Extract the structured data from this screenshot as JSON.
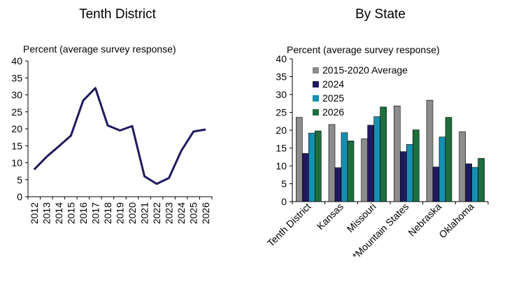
{
  "chart_data": [
    {
      "type": "line",
      "title": "Tenth District",
      "ylabel": "Percent (average survey response)",
      "ylim": [
        0,
        40
      ],
      "ytick_step": 5,
      "x": [
        "2012",
        "2013",
        "2014",
        "2015",
        "2016",
        "2017",
        "2018",
        "2019",
        "2020",
        "2021",
        "2022",
        "2023",
        "2024",
        "2025",
        "2026"
      ],
      "series": [
        {
          "values": [
            8,
            11.7,
            14.8,
            18,
            28.3,
            32,
            21,
            19.5,
            20.8,
            6,
            3.8,
            5.5,
            13.5,
            19.2,
            19.8
          ],
          "color": "#1f1a5e"
        }
      ]
    },
    {
      "type": "bar",
      "title": "By State",
      "ylabel": "Percent (average survey response)",
      "ylim": [
        0,
        40
      ],
      "ytick_step": 5,
      "legend": "top-left",
      "categories": [
        "Tenth District",
        "Kansas",
        "Missouri",
        "*Mountain States",
        "Nebraska",
        "Oklahoma"
      ],
      "series": [
        {
          "name": "2015-2020 Average",
          "color": "#8c8c8c",
          "values": [
            23.6,
            21.6,
            17.6,
            26.8,
            28.4,
            19.6
          ]
        },
        {
          "name": "2024",
          "color": "#1f1a5e",
          "values": [
            13.5,
            9.5,
            21.4,
            14,
            9.7,
            10.6
          ]
        },
        {
          "name": "2025",
          "color": "#168fb0",
          "values": [
            19.2,
            19.3,
            23.8,
            16,
            18.1,
            9.6
          ]
        },
        {
          "name": "2026",
          "color": "#1e6e3e",
          "values": [
            19.8,
            17,
            26.5,
            20.1,
            23.6,
            12.1
          ]
        }
      ]
    }
  ]
}
